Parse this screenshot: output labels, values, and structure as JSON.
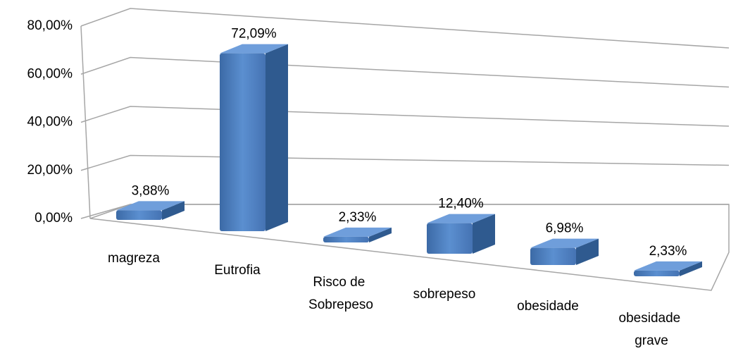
{
  "chart_data": {
    "type": "bar3d",
    "categories": [
      "magreza",
      "Eutrofia",
      "Risco de Sobrepeso",
      "sobrepeso",
      "obesidade",
      "obesidade grave"
    ],
    "values": [
      3.88,
      72.09,
      2.33,
      12.4,
      6.98,
      2.33
    ],
    "value_labels": [
      "3,88%",
      "72,09%",
      "2,33%",
      "12,40%",
      "6,98%",
      "2,33%"
    ],
    "color": "#4f81bd",
    "ylim": [
      0,
      80
    ],
    "yticks": [
      {
        "value": 0,
        "label": "0,00%"
      },
      {
        "value": 20,
        "label": "20,00%"
      },
      {
        "value": 40,
        "label": "40,00%"
      },
      {
        "value": 60,
        "label": "60,00%"
      },
      {
        "value": 80,
        "label": "80,00%"
      }
    ],
    "grid": true
  }
}
